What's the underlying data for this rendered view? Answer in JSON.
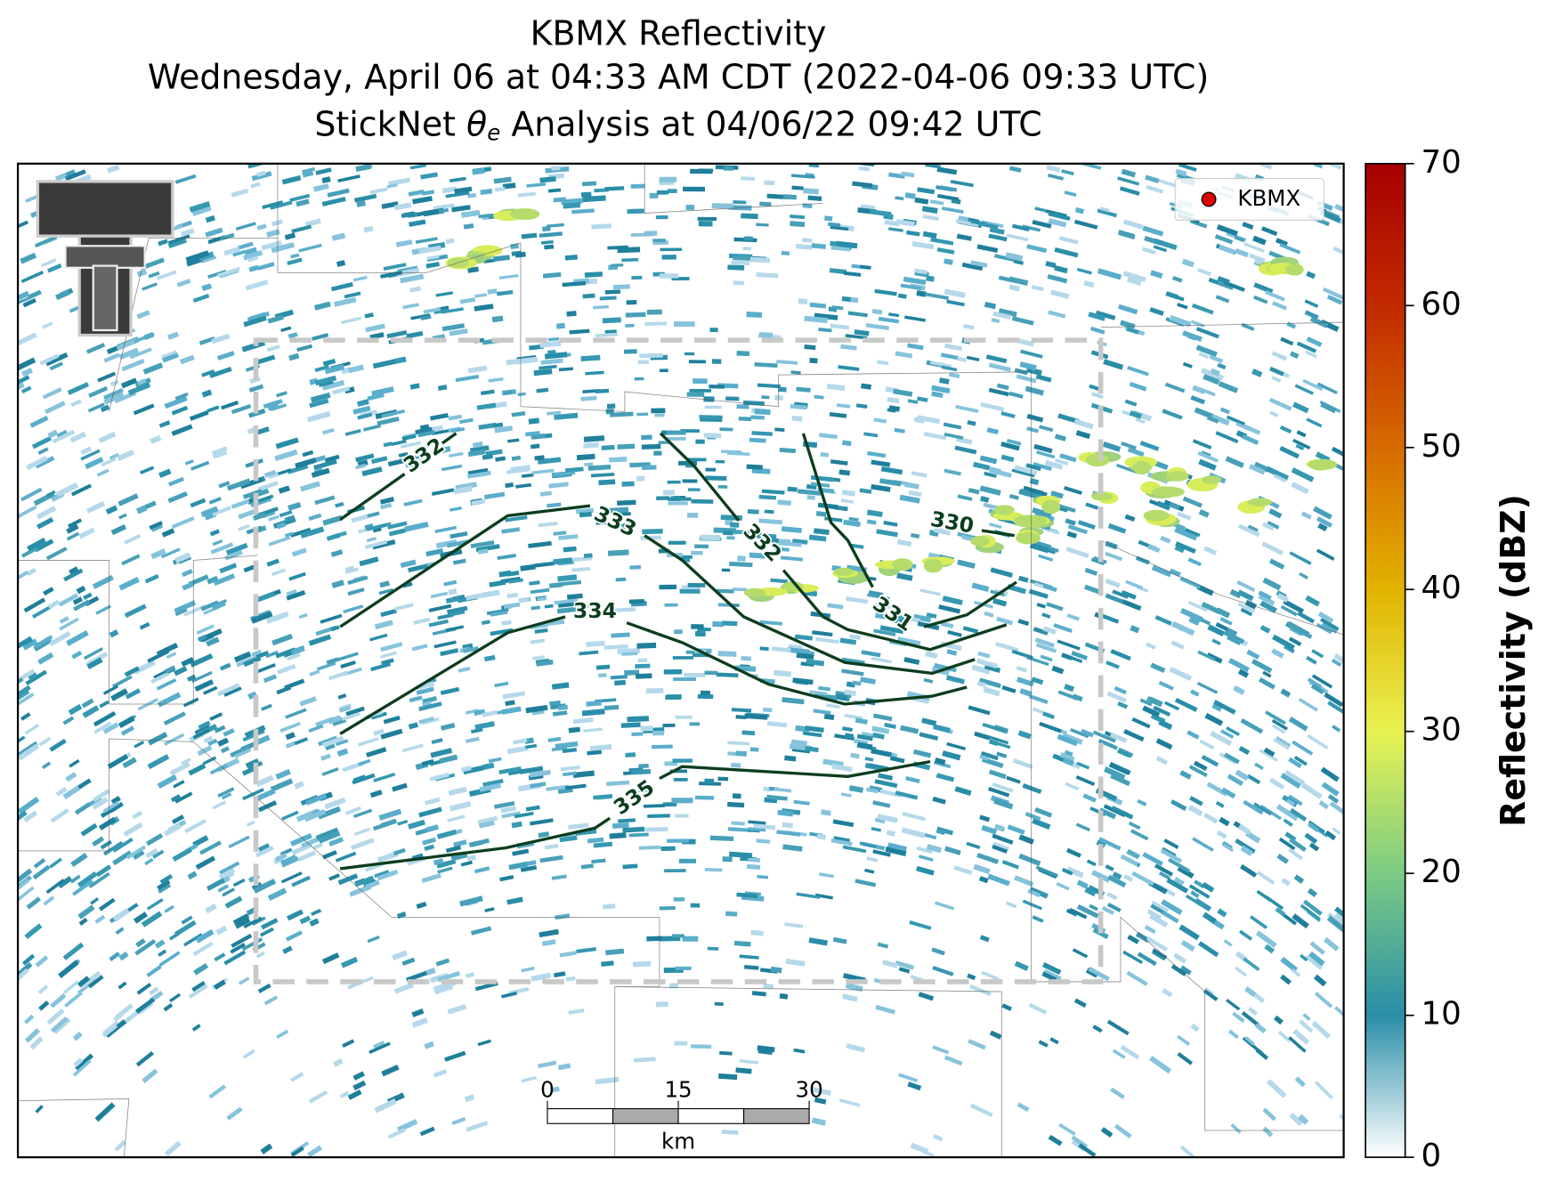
{
  "chart_data": {
    "type": "radar_map",
    "title_lines": [
      "KBMX Reflectivity",
      "Wednesday, April 06 at 04:33 AM CDT (2022-04-06 09:33 UTC)"
    ],
    "title_line3": {
      "before": "StickNet ",
      "symbol": "θ",
      "subscript": "e",
      "after": " Analysis at 04/06/22 09:42 UTC"
    },
    "legend": {
      "label": "KBMX",
      "color": "#e00000",
      "corner": "upper right"
    },
    "colorbar": {
      "label": "Reflectivity (dBZ)",
      "lim": [
        0,
        70
      ],
      "ticks": [
        0,
        10,
        20,
        30,
        40,
        50,
        60,
        70
      ]
    },
    "contours": [
      {
        "level": 332
      },
      {
        "level": 333
      },
      {
        "level": 334
      },
      {
        "level": 335
      },
      {
        "level": 332
      },
      {
        "level": 331
      },
      {
        "level": 330
      }
    ],
    "scale_bar": {
      "ticks": [
        0,
        15,
        30
      ],
      "unit": "km"
    }
  }
}
